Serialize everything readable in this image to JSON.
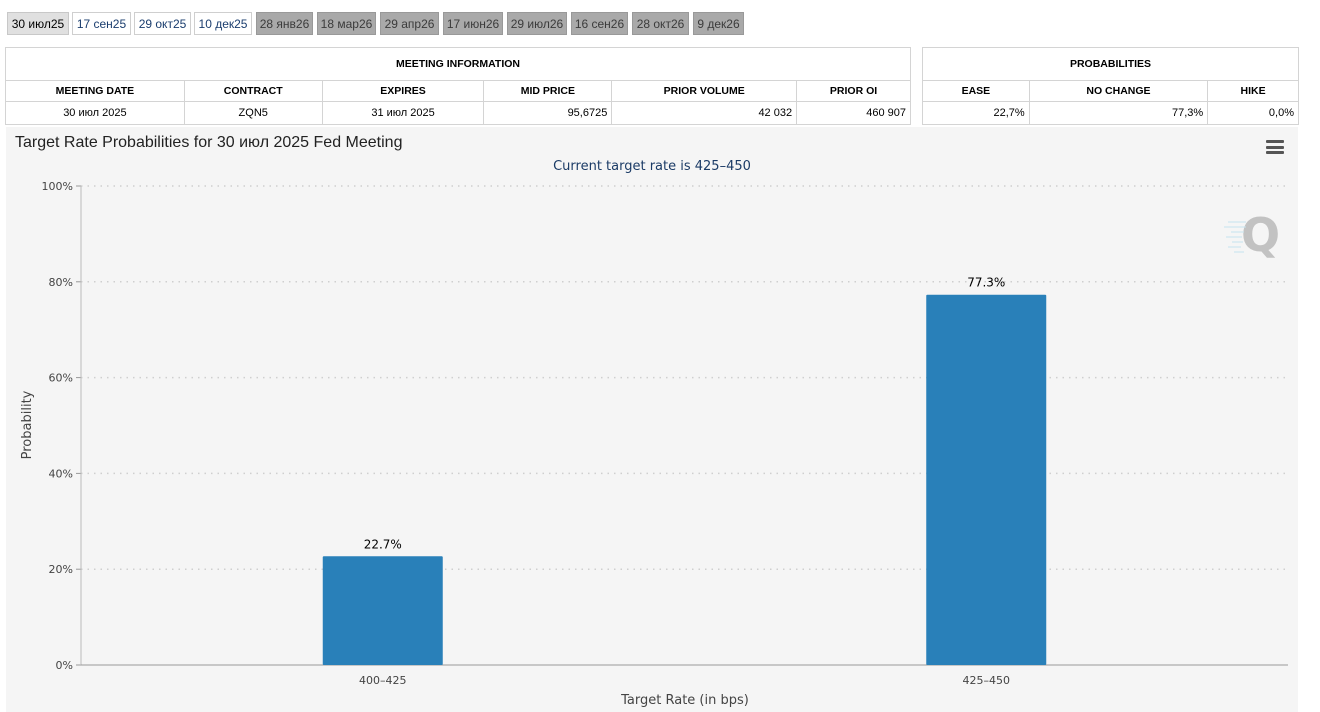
{
  "tabs": [
    {
      "label": "30 июл25",
      "state": "active"
    },
    {
      "label": "17 сен25",
      "state": "available"
    },
    {
      "label": "29 окт25",
      "state": "available"
    },
    {
      "label": "10 дек25",
      "state": "available"
    },
    {
      "label": "28 янв26",
      "state": "future"
    },
    {
      "label": "18 мар26",
      "state": "future"
    },
    {
      "label": "29 апр26",
      "state": "future"
    },
    {
      "label": "17 июн26",
      "state": "future"
    },
    {
      "label": "29 июл26",
      "state": "future"
    },
    {
      "label": "16 сен26",
      "state": "future"
    },
    {
      "label": "28 окт26",
      "state": "future"
    },
    {
      "label": "9 дек26",
      "state": "future"
    }
  ],
  "meeting_info": {
    "title": "MEETING INFORMATION",
    "columns": [
      "MEETING DATE",
      "CONTRACT",
      "EXPIRES",
      "MID PRICE",
      "PRIOR VOLUME",
      "PRIOR OI"
    ],
    "values": [
      "30 июл 2025",
      "ZQN5",
      "31 июл 2025",
      "95,6725",
      "42 032",
      "460 907"
    ]
  },
  "probabilities": {
    "title": "PROBABILITIES",
    "columns": [
      "EASE",
      "NO CHANGE",
      "HIKE"
    ],
    "values": [
      "22,7%",
      "77,3%",
      "0,0%"
    ]
  },
  "chart": {
    "title": "Target Rate Probabilities for 30 июл 2025 Fed Meeting",
    "subtitle": "Current target rate is 425–450",
    "menu_icon": "hamburger-menu-icon",
    "watermark_icon": "q-logo-icon"
  },
  "chart_data": {
    "type": "bar",
    "categories": [
      "400–425",
      "425–450"
    ],
    "values": [
      22.7,
      77.3
    ],
    "data_labels": [
      "22.7%",
      "77.3%"
    ],
    "xlabel": "Target Rate (in bps)",
    "ylabel": "Probability",
    "ylim": [
      0,
      100
    ],
    "yticks": [
      "0%",
      "20%",
      "40%",
      "60%",
      "80%",
      "100%"
    ],
    "grid": true,
    "bar_color": "#2980b9"
  }
}
